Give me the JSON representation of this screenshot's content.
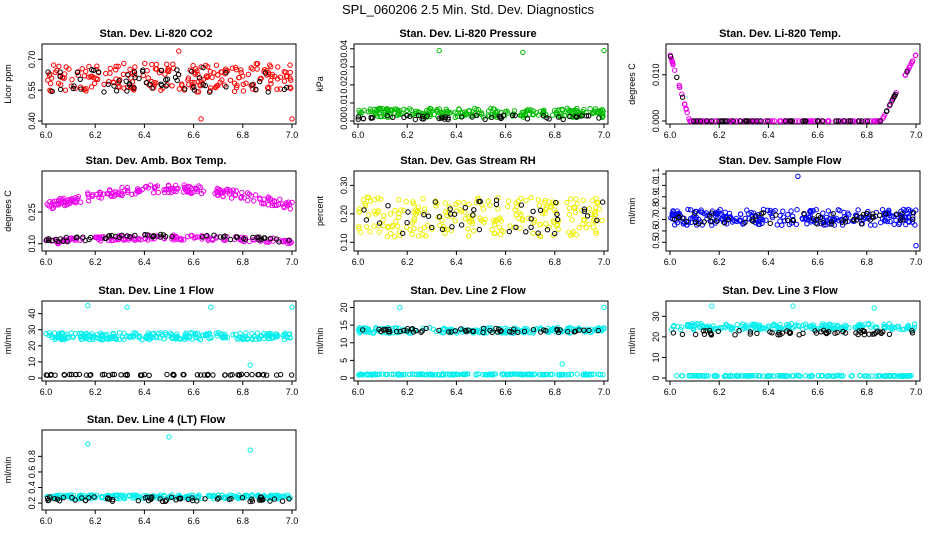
{
  "page": {
    "title": "SPL_060206  2.5 Min. Std. Dev. Diagnostics"
  },
  "chart_data": [
    {
      "id": "co2",
      "type": "scatter",
      "title": "Stan. Dev. Li-820 CO2",
      "xlabel": "",
      "ylabel": "Licor ppm",
      "xlim": [
        6.0,
        7.0
      ],
      "ylim": [
        0.4,
        0.76
      ],
      "xticks": [
        "6.0",
        "6.2",
        "6.4",
        "6.6",
        "6.8",
        "7.0"
      ],
      "yticks": [
        "0.40",
        "0.55",
        "0.70"
      ],
      "colors": [
        "#ff0000",
        "#000000"
      ],
      "series": [
        {
          "name": "all",
          "color": "#ff0000",
          "base": 0.61,
          "spread": 0.07,
          "shape": "flat",
          "n": 220,
          "seed": 11
        },
        {
          "name": "subset",
          "color": "#000000",
          "base": 0.6,
          "spread": 0.06,
          "shape": "flat",
          "n": 60,
          "seed": 12
        }
      ],
      "outliers": [
        {
          "x": 0.54,
          "y": 0.74,
          "color": "#ff0000"
        },
        {
          "x": 0.63,
          "y": 0.41,
          "color": "#ff0000"
        },
        {
          "x": 1.0,
          "y": 0.41,
          "color": "#ff0000"
        }
      ]
    },
    {
      "id": "pressure",
      "type": "scatter",
      "title": "Stan. Dev. Li-820 Pressure",
      "xlabel": "",
      "ylabel": "kPa",
      "xlim": [
        6.0,
        7.0
      ],
      "ylim": [
        0.0,
        0.041
      ],
      "xticks": [
        "6.0",
        "6.2",
        "6.4",
        "6.6",
        "6.8",
        "7.0"
      ],
      "yticks": [
        "0.00",
        "0.01",
        "0.02",
        "0.03",
        "0.04"
      ],
      "colors": [
        "#00bb00",
        "#000000"
      ],
      "series": [
        {
          "name": "all",
          "color": "#00bb00",
          "base": 0.0045,
          "spread": 0.0025,
          "shape": "flat",
          "n": 240,
          "seed": 21
        },
        {
          "name": "subset",
          "color": "#000000",
          "base": 0.002,
          "spread": 0.0012,
          "shape": "flat",
          "n": 50,
          "seed": 22
        }
      ],
      "outliers": [
        {
          "x": 0.33,
          "y": 0.039,
          "color": "#00bb00"
        },
        {
          "x": 0.67,
          "y": 0.038,
          "color": "#00bb00"
        },
        {
          "x": 1.0,
          "y": 0.039,
          "color": "#00bb00"
        }
      ]
    },
    {
      "id": "temp",
      "type": "scatter",
      "title": "Stan. Dev. Li-820 Temp.",
      "xlabel": "",
      "ylabel": "degrees C",
      "xlim": [
        6.0,
        7.0
      ],
      "ylim": [
        0.0,
        0.016
      ],
      "xticks": [
        "6.0",
        "6.2",
        "6.4",
        "6.6",
        "6.8",
        "7.0"
      ],
      "yticks": [
        "0.000",
        "0.010"
      ],
      "colors": [
        "#ee00ee",
        "#000000"
      ],
      "series": [
        {
          "name": "all",
          "color": "#ee00ee",
          "base": 0.0,
          "spread": 0.0004,
          "shape": "vshape",
          "n": 170,
          "seed": 31
        },
        {
          "name": "subset",
          "color": "#000000",
          "base": 0.0,
          "spread": 0.0003,
          "shape": "vshape",
          "n": 50,
          "seed": 32
        }
      ],
      "outliers": []
    },
    {
      "id": "ambtemp",
      "type": "scatter",
      "title": "Stan. Dev. Amb. Box Temp.",
      "xlabel": "",
      "ylabel": "degrees C",
      "xlim": [
        6.0,
        7.0
      ],
      "ylim": [
        0.08,
        0.43
      ],
      "xticks": [
        "6.0",
        "6.2",
        "6.4",
        "6.6",
        "6.8",
        "7.0"
      ],
      "yticks": [
        "0.10",
        "0.25"
      ],
      "colors": [
        "#ee00ee",
        "#000000"
      ],
      "series": [
        {
          "name": "upper",
          "color": "#ee00ee",
          "base": 0.28,
          "spread": 0.02,
          "shape": "arch",
          "amp": 0.08,
          "n": 200,
          "seed": 41
        },
        {
          "name": "lower",
          "color": "#ee00ee",
          "base": 0.11,
          "spread": 0.012,
          "shape": "arch",
          "amp": 0.02,
          "n": 150,
          "seed": 42
        },
        {
          "name": "subset",
          "color": "#000000",
          "base": 0.115,
          "spread": 0.01,
          "shape": "arch",
          "amp": 0.02,
          "n": 60,
          "seed": 43
        }
      ],
      "outliers": []
    },
    {
      "id": "rh",
      "type": "scatter",
      "title": "Stan. Dev. Gas Stream RH",
      "xlabel": "",
      "ylabel": "percent",
      "xlim": [
        6.0,
        7.0
      ],
      "ylim": [
        0.08,
        0.34
      ],
      "xticks": [
        "6.0",
        "6.2",
        "6.4",
        "6.6",
        "6.8",
        "7.0"
      ],
      "yticks": [
        "0.10",
        "0.20",
        "0.30"
      ],
      "colors": [
        "#ffff00",
        "#000000"
      ],
      "series": [
        {
          "name": "all",
          "color": "#eeee00",
          "base": 0.19,
          "spread": 0.07,
          "shape": "flat",
          "n": 230,
          "seed": 51
        },
        {
          "name": "subset",
          "color": "#000000",
          "base": 0.19,
          "spread": 0.06,
          "shape": "flat",
          "n": 45,
          "seed": 52
        }
      ],
      "outliers": []
    },
    {
      "id": "sample",
      "type": "scatter",
      "title": "Stan. Dev. Sample Flow",
      "xlabel": "",
      "ylabel": "ml/min",
      "xlim": [
        6.0,
        7.0
      ],
      "ylim": [
        0.45,
        1.1
      ],
      "xticks": [
        "6.0",
        "6.2",
        "6.4",
        "6.6",
        "6.8",
        "7.0"
      ],
      "yticks": [
        "0.5",
        "0.6",
        "0.7",
        "0.8",
        "0.9",
        "1.0",
        "1.1"
      ],
      "colors": [
        "#0000ff",
        "#000000"
      ],
      "series": [
        {
          "name": "all",
          "color": "#0000ff",
          "base": 0.72,
          "spread": 0.07,
          "shape": "flat",
          "n": 260,
          "seed": 61
        },
        {
          "name": "subset",
          "color": "#000000",
          "base": 0.71,
          "spread": 0.05,
          "shape": "flat",
          "n": 60,
          "seed": 62
        }
      ],
      "outliers": [
        {
          "x": 0.52,
          "y": 1.08,
          "color": "#0000ff"
        },
        {
          "x": 1.0,
          "y": 0.47,
          "color": "#0000ff"
        }
      ]
    },
    {
      "id": "line1",
      "type": "scatter",
      "title": "Stan. Dev. Line 1 Flow",
      "xlabel": "",
      "ylabel": "ml/min",
      "xlim": [
        6.0,
        7.0
      ],
      "ylim": [
        0,
        46
      ],
      "xticks": [
        "6.0",
        "6.2",
        "6.4",
        "6.6",
        "6.8",
        "7.0"
      ],
      "yticks": [
        "0",
        "10",
        "20",
        "30",
        "40"
      ],
      "colors": [
        "#00eeee",
        "#000000"
      ],
      "series": [
        {
          "name": "all",
          "color": "#00eeee",
          "base": 26,
          "spread": 2.2,
          "shape": "flat",
          "n": 240,
          "seed": 71
        },
        {
          "name": "subset",
          "color": "#000000",
          "base": 2,
          "spread": 0.3,
          "shape": "flat",
          "n": 60,
          "seed": 72
        }
      ],
      "outliers": [
        {
          "x": 0.17,
          "y": 45,
          "color": "#00eeee"
        },
        {
          "x": 0.33,
          "y": 44,
          "color": "#00eeee"
        },
        {
          "x": 0.67,
          "y": 44,
          "color": "#00eeee"
        },
        {
          "x": 0.83,
          "y": 8,
          "color": "#00eeee"
        },
        {
          "x": 1.0,
          "y": 44,
          "color": "#00eeee"
        }
      ]
    },
    {
      "id": "line2",
      "type": "scatter",
      "title": "Stan. Dev. Line 2 Flow",
      "xlabel": "",
      "ylabel": "ml/min",
      "xlim": [
        6.0,
        7.0
      ],
      "ylim": [
        0,
        21
      ],
      "xticks": [
        "6.0",
        "6.2",
        "6.4",
        "6.6",
        "6.8",
        "7.0"
      ],
      "yticks": [
        "0",
        "5",
        "10",
        "15",
        "20"
      ],
      "colors": [
        "#00eeee",
        "#000000"
      ],
      "series": [
        {
          "name": "upper",
          "color": "#00eeee",
          "base": 13.5,
          "spread": 0.8,
          "shape": "flat",
          "n": 200,
          "seed": 81
        },
        {
          "name": "lower",
          "color": "#00eeee",
          "base": 1,
          "spread": 0.15,
          "shape": "flat",
          "n": 160,
          "seed": 82
        },
        {
          "name": "subset",
          "color": "#000000",
          "base": 13.5,
          "spread": 0.6,
          "shape": "flat",
          "n": 60,
          "seed": 83
        }
      ],
      "outliers": [
        {
          "x": 0.17,
          "y": 20,
          "color": "#00eeee"
        },
        {
          "x": 0.83,
          "y": 4,
          "color": "#00eeee"
        },
        {
          "x": 1.0,
          "y": 20,
          "color": "#00eeee"
        }
      ]
    },
    {
      "id": "line3",
      "type": "scatter",
      "title": "Stan. Dev. Line 3 Flow",
      "xlabel": "",
      "ylabel": "ml/min",
      "xlim": [
        6.0,
        7.0
      ],
      "ylim": [
        0,
        36
      ],
      "xticks": [
        "6.0",
        "6.2",
        "6.4",
        "6.6",
        "6.8",
        "7.0"
      ],
      "yticks": [
        "0",
        "10",
        "20",
        "30"
      ],
      "colors": [
        "#00eeee",
        "#000000"
      ],
      "series": [
        {
          "name": "upper",
          "color": "#00eeee",
          "base": 25,
          "spread": 1.5,
          "shape": "flat",
          "n": 200,
          "seed": 91
        },
        {
          "name": "lower",
          "color": "#00eeee",
          "base": 1,
          "spread": 0.2,
          "shape": "flat",
          "n": 160,
          "seed": 92
        },
        {
          "name": "subset",
          "color": "#000000",
          "base": 22,
          "spread": 1.2,
          "shape": "flat",
          "n": 60,
          "seed": 93
        }
      ],
      "outliers": [
        {
          "x": 0.17,
          "y": 35,
          "color": "#00eeee"
        },
        {
          "x": 0.5,
          "y": 35,
          "color": "#00eeee"
        },
        {
          "x": 0.83,
          "y": 34,
          "color": "#00eeee"
        }
      ]
    },
    {
      "id": "line4",
      "type": "scatter",
      "title": "Stan. Dev. Line 4 (LT) Flow",
      "xlabel": "",
      "ylabel": "ml/min",
      "xlim": [
        6.0,
        7.0
      ],
      "ylim": [
        0.15,
        1.1
      ],
      "xticks": [
        "6.0",
        "6.2",
        "6.4",
        "6.6",
        "6.8",
        "7.0"
      ],
      "yticks": [
        "0.2",
        "0.4",
        "0.6",
        "0.8"
      ],
      "colors": [
        "#00eeee",
        "#000000"
      ],
      "series": [
        {
          "name": "all",
          "color": "#00eeee",
          "base": 0.28,
          "spread": 0.025,
          "shape": "flat",
          "n": 230,
          "seed": 101
        },
        {
          "name": "subset",
          "color": "#000000",
          "base": 0.25,
          "spread": 0.03,
          "shape": "flat",
          "n": 60,
          "seed": 102
        }
      ],
      "outliers": [
        {
          "x": 0.17,
          "y": 0.96,
          "color": "#00eeee"
        },
        {
          "x": 0.5,
          "y": 1.05,
          "color": "#00eeee"
        },
        {
          "x": 0.83,
          "y": 0.88,
          "color": "#00eeee"
        }
      ]
    }
  ]
}
